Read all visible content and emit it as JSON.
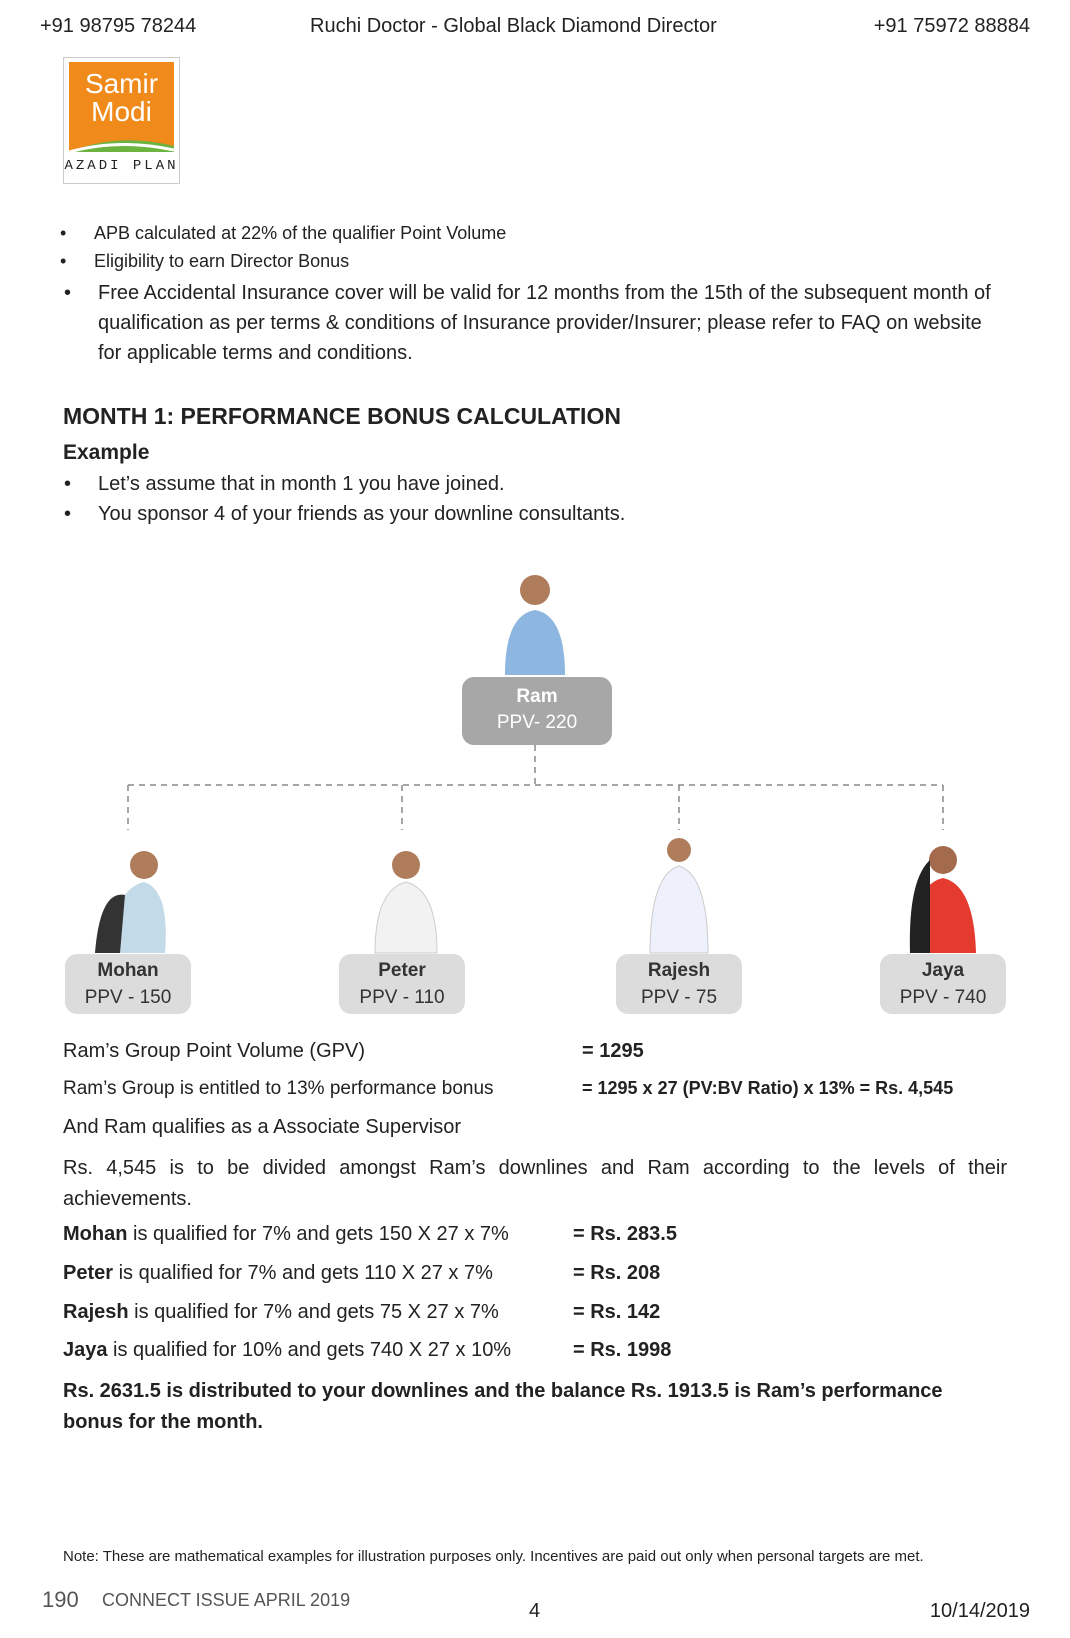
{
  "header": {
    "phone_left": "+91 98795 78244",
    "center": "Ruchi Doctor - Global Black Diamond Director",
    "phone_right": "+91 75972 88884"
  },
  "logo": {
    "line1": "Samir",
    "line2": "Modi",
    "sub": "AZADI PLAN"
  },
  "small_bullets": [
    "APB calculated at 22% of the qualifier Point Volume",
    "Eligibility to earn Director Bonus"
  ],
  "large_bullet": "Free Accidental Insurance cover will be valid for 12 months from the 15th of the subsequent month of qualification as per terms & conditions of Insurance provider/Insurer; please refer to FAQ on website for applicable terms and conditions.",
  "section_title": "MONTH 1: PERFORMANCE BONUS CALCULATION",
  "example": {
    "label": "Example",
    "bullets": [
      "Let’s assume that in month 1 you have joined.",
      "You sponsor 4 of your friends as your downline consultants."
    ]
  },
  "tree": {
    "root": {
      "name": "Ram",
      "ppv": "PPV- 220"
    },
    "children": [
      {
        "name": "Mohan",
        "ppv": "PPV - 150"
      },
      {
        "name": "Peter",
        "ppv": "PPV - 110"
      },
      {
        "name": "Rajesh",
        "ppv": "PPV - 75"
      },
      {
        "name": "Jaya",
        "ppv": "PPV - 740"
      }
    ]
  },
  "summary_rows": [
    {
      "label": "Ram’s Group Point Volume (GPV)",
      "value": "= 1295"
    },
    {
      "label": "Ram’s Group is entitled to 13% performance bonus",
      "value": "= 1295 x 27 (PV:BV Ratio) x 13% = Rs. 4,545"
    }
  ],
  "qualifies": "And Ram qualifies as a Associate Supervisor",
  "division": "Rs. 4,545 is to be divided amongst Ram’s downlines and Ram according to the levels of their achievements.",
  "payouts": [
    {
      "name": "Mohan",
      "text": " is qualified for 7% and gets 150 X 27 x 7%",
      "value": "= Rs. 283.5"
    },
    {
      "name": "Peter",
      "text": " is qualified for 7% and gets 110 X 27 x 7%",
      "value": "= Rs. 208"
    },
    {
      "name": "Rajesh",
      "text": " is qualified for 7% and gets 75 X 27 x 7%",
      "value": "= Rs. 142"
    },
    {
      "name": "Jaya",
      "text": " is qualified for 10% and gets 740 X 27 x 10%",
      "value": "= Rs. 1998"
    }
  ],
  "conclusion": "Rs. 2631.5 is distributed to your downlines and the balance Rs. 1913.5 is Ram’s performance bonus for the month.",
  "note": "Note: These are mathematical examples for illustration purposes only. Incentives are paid out only when personal targets are met.",
  "footer": {
    "page": "190",
    "issue": "CONNECT ISSUE APRIL 2019",
    "center": "4",
    "date": "10/14/2019"
  }
}
